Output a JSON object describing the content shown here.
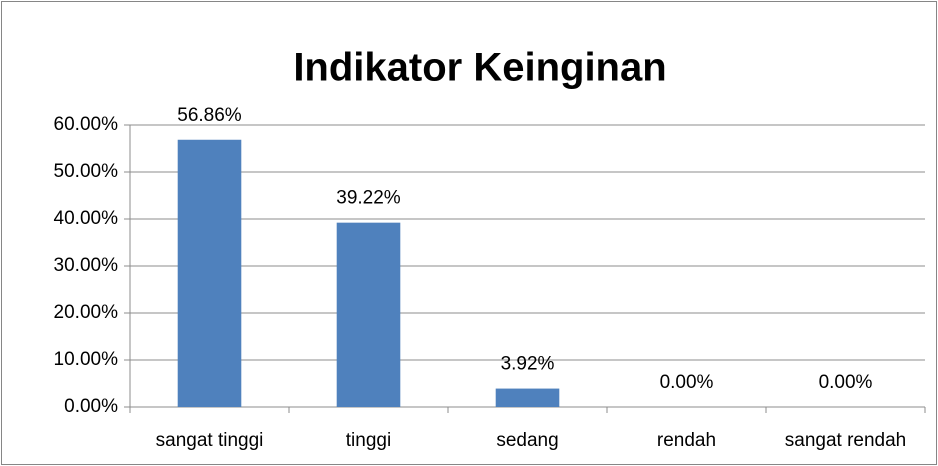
{
  "chart_data": {
    "type": "bar",
    "title": "Indikator Keinginan",
    "categories": [
      "sangat tinggi",
      "tinggi",
      "sedang",
      "rendah",
      "sangat rendah"
    ],
    "values": [
      56.86,
      39.22,
      3.92,
      0,
      0
    ],
    "value_labels": [
      "56.86%",
      "39.22%",
      "3.92%",
      "0.00%",
      "0.00%"
    ],
    "color": "#4f81bd",
    "ylim": [
      0,
      60
    ],
    "yticks": [
      {
        "value": 0,
        "label": "0.00%"
      },
      {
        "value": 10,
        "label": "10.00%"
      },
      {
        "value": 20,
        "label": "20.00%"
      },
      {
        "value": 30,
        "label": "30.00%"
      },
      {
        "value": 40,
        "label": "40.00%"
      },
      {
        "value": 50,
        "label": "50.00%"
      },
      {
        "value": 60,
        "label": "60.00%"
      }
    ],
    "grid": true
  }
}
